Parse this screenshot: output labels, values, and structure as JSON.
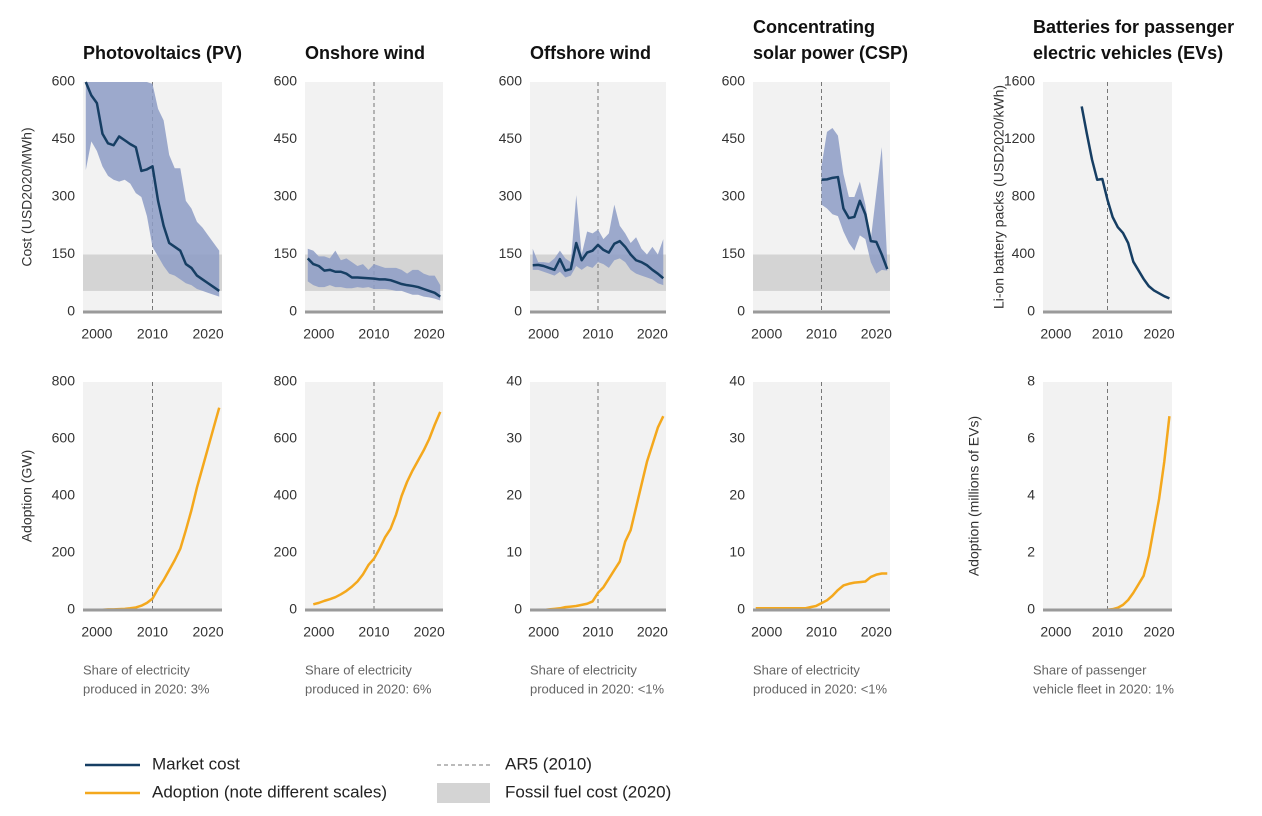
{
  "chart_data": [
    {
      "type": "line",
      "title": [
        "Photovoltaics (PV)"
      ],
      "ylabel": "Cost (USD2020/MWh)",
      "x": [
        1998,
        1999,
        2000,
        2001,
        2002,
        2003,
        2004,
        2005,
        2006,
        2007,
        2008,
        2009,
        2010,
        2011,
        2012,
        2013,
        2014,
        2015,
        2016,
        2017,
        2018,
        2019,
        2020,
        2021,
        2022
      ],
      "series": [
        {
          "name": "Market cost",
          "color": "#163e63",
          "range_color": "#8d9cc6",
          "values": [
            600,
            565,
            545,
            465,
            440,
            435,
            458,
            448,
            438,
            430,
            368,
            372,
            380,
            290,
            225,
            180,
            170,
            160,
            125,
            115,
            95,
            85,
            75,
            65,
            55
          ],
          "upper": [
            600,
            600,
            600,
            600,
            600,
            600,
            600,
            600,
            600,
            600,
            600,
            600,
            595,
            530,
            500,
            410,
            375,
            375,
            290,
            270,
            235,
            220,
            200,
            180,
            160
          ],
          "lower": [
            370,
            445,
            420,
            380,
            355,
            345,
            340,
            345,
            335,
            310,
            300,
            250,
            170,
            145,
            120,
            100,
            95,
            85,
            75,
            70,
            60,
            55,
            50,
            45,
            40
          ]
        }
      ],
      "band": {
        "range": [
          55,
          150
        ],
        "color": "#d4d4d4",
        "label": "Fossil fuel cost (2020)"
      },
      "vline": {
        "x": 2010,
        "color": "#777777",
        "label": "AR5 (2010)"
      },
      "xlim": [
        1997.5,
        2022.5
      ],
      "xticks": [
        2000,
        2010,
        2020
      ],
      "ylim": [
        0,
        600
      ],
      "yticks": [
        0,
        150,
        300,
        450,
        600
      ]
    },
    {
      "type": "line",
      "title": [
        "Onshore wind"
      ],
      "x": [
        1998,
        1999,
        2000,
        2001,
        2002,
        2003,
        2004,
        2005,
        2006,
        2007,
        2008,
        2009,
        2010,
        2011,
        2012,
        2013,
        2014,
        2015,
        2016,
        2017,
        2018,
        2019,
        2020,
        2021,
        2022
      ],
      "series": [
        {
          "color": "#163e63",
          "range_color": "#8d9cc6",
          "values": [
            140,
            125,
            120,
            108,
            110,
            105,
            105,
            100,
            90,
            90,
            89,
            88,
            87,
            85,
            85,
            83,
            78,
            73,
            70,
            68,
            65,
            60,
            55,
            50,
            40
          ],
          "upper": [
            165,
            160,
            145,
            145,
            140,
            160,
            135,
            140,
            130,
            120,
            125,
            110,
            125,
            120,
            115,
            115,
            115,
            110,
            100,
            110,
            110,
            100,
            95,
            95,
            70
          ],
          "lower": [
            80,
            70,
            65,
            65,
            70,
            65,
            65,
            62,
            62,
            65,
            63,
            65,
            60,
            60,
            60,
            58,
            55,
            55,
            50,
            45,
            45,
            40,
            38,
            35,
            30
          ]
        }
      ],
      "band": {
        "range": [
          55,
          150
        ],
        "color": "#d4d4d4"
      },
      "vline": {
        "x": 2010,
        "color": "#777777"
      },
      "xlim": [
        1997.5,
        2022.5
      ],
      "xticks": [
        2000,
        2010,
        2020
      ],
      "ylim": [
        0,
        600
      ],
      "yticks": [
        0,
        150,
        300,
        450,
        600
      ]
    },
    {
      "type": "line",
      "title": [
        "Offshore wind"
      ],
      "x": [
        1998,
        1999,
        2000,
        2001,
        2002,
        2003,
        2004,
        2005,
        2006,
        2007,
        2008,
        2009,
        2010,
        2011,
        2012,
        2013,
        2014,
        2015,
        2016,
        2017,
        2018,
        2019,
        2020,
        2021,
        2022
      ],
      "series": [
        {
          "color": "#163e63",
          "range_color": "#8d9cc6",
          "values": [
            122,
            123,
            120,
            115,
            110,
            138,
            108,
            112,
            180,
            135,
            155,
            160,
            175,
            162,
            155,
            178,
            185,
            170,
            150,
            135,
            130,
            122,
            110,
            100,
            88
          ],
          "upper": [
            165,
            130,
            130,
            128,
            140,
            160,
            140,
            130,
            305,
            150,
            210,
            205,
            215,
            190,
            205,
            280,
            225,
            205,
            180,
            195,
            165,
            150,
            170,
            150,
            190
          ],
          "lower": [
            110,
            110,
            105,
            100,
            95,
            105,
            90,
            95,
            120,
            110,
            120,
            115,
            130,
            125,
            115,
            135,
            140,
            130,
            110,
            100,
            95,
            90,
            85,
            75,
            70
          ]
        }
      ],
      "band": {
        "range": [
          55,
          150
        ],
        "color": "#d4d4d4"
      },
      "vline": {
        "x": 2010,
        "color": "#777777"
      },
      "xlim": [
        1997.5,
        2022.5
      ],
      "xticks": [
        2000,
        2010,
        2020
      ],
      "ylim": [
        0,
        600
      ],
      "yticks": [
        0,
        150,
        300,
        450,
        600
      ]
    },
    {
      "type": "line",
      "title": [
        "Concentrating",
        "solar power (CSP)"
      ],
      "x": [
        2010,
        2011,
        2012,
        2013,
        2014,
        2015,
        2016,
        2017,
        2018,
        2019,
        2020,
        2021,
        2022
      ],
      "series": [
        {
          "color": "#163e63",
          "range_color": "#8d9cc6",
          "values": [
            345,
            346,
            350,
            352,
            270,
            245,
            248,
            290,
            255,
            185,
            183,
            150,
            112
          ],
          "upper": [
            380,
            470,
            480,
            460,
            360,
            300,
            300,
            340,
            280,
            190,
            310,
            430,
            130
          ],
          "lower": [
            280,
            270,
            255,
            250,
            210,
            180,
            160,
            200,
            190,
            130,
            100,
            110,
            108
          ]
        }
      ],
      "band": {
        "range": [
          55,
          150
        ],
        "color": "#d4d4d4"
      },
      "vline": {
        "x": 2010,
        "color": "#777777"
      },
      "xlim": [
        1997.5,
        2022.5
      ],
      "xticks": [
        2000,
        2010,
        2020
      ],
      "ylim": [
        0,
        600
      ],
      "yticks": [
        0,
        150,
        300,
        450,
        600
      ]
    },
    {
      "type": "line",
      "title": [
        "Batteries for passenger",
        "electric vehicles (EVs)"
      ],
      "ylabel": "Li-on battery packs (USD2020/kWh)",
      "x": [
        2005,
        2006,
        2007,
        2008,
        2009,
        2010,
        2011,
        2012,
        2013,
        2014,
        2015,
        2016,
        2017,
        2018,
        2019,
        2020,
        2021,
        2022
      ],
      "series": [
        {
          "color": "#163e63",
          "values": [
            1430,
            1240,
            1060,
            920,
            925,
            780,
            660,
            590,
            550,
            480,
            350,
            290,
            230,
            180,
            150,
            130,
            110,
            95
          ]
        }
      ],
      "vline": {
        "x": 2010,
        "color": "#777777"
      },
      "xlim": [
        1997.5,
        2022.5
      ],
      "xticks": [
        2000,
        2010,
        2020
      ],
      "ylim": [
        0,
        1600
      ],
      "yticks": [
        0,
        400,
        800,
        1200,
        1600
      ]
    },
    {
      "type": "line",
      "ylabel": "Adoption (GW)",
      "note": [
        "Share of electricity",
        "produced in 2020: 3%"
      ],
      "x": [
        1998,
        1999,
        2000,
        2001,
        2002,
        2003,
        2004,
        2005,
        2006,
        2007,
        2008,
        2009,
        2010,
        2011,
        2012,
        2013,
        2014,
        2015,
        2016,
        2017,
        2018,
        2019,
        2020,
        2021,
        2022
      ],
      "series": [
        {
          "name": "Adoption (note different scales)",
          "color": "#f4a81d",
          "values": [
            1,
            1,
            1,
            1,
            2,
            2,
            3,
            4,
            6,
            9,
            15,
            25,
            40,
            75,
            105,
            140,
            175,
            215,
            280,
            350,
            430,
            500,
            570,
            640,
            710
          ]
        }
      ],
      "vline": {
        "x": 2010,
        "color": "#777777"
      },
      "xlim": [
        1997.5,
        2022.5
      ],
      "xticks": [
        2000,
        2010,
        2020
      ],
      "ylim": [
        0,
        800
      ],
      "yticks": [
        0,
        200,
        400,
        600,
        800
      ]
    },
    {
      "type": "line",
      "note": [
        "Share of electricity",
        "produced in 2020: 6%"
      ],
      "x": [
        1999,
        2000,
        2001,
        2002,
        2003,
        2004,
        2005,
        2006,
        2007,
        2008,
        2009,
        2010,
        2011,
        2012,
        2013,
        2014,
        2015,
        2016,
        2017,
        2018,
        2019,
        2020,
        2021,
        2022
      ],
      "series": [
        {
          "color": "#f4a81d",
          "values": [
            20,
            25,
            32,
            38,
            45,
            55,
            67,
            82,
            100,
            125,
            158,
            180,
            215,
            255,
            285,
            335,
            400,
            450,
            490,
            525,
            560,
            600,
            650,
            695
          ]
        }
      ],
      "vline": {
        "x": 2010,
        "color": "#777777"
      },
      "xlim": [
        1997.5,
        2022.5
      ],
      "xticks": [
        2000,
        2010,
        2020
      ],
      "ylim": [
        0,
        800
      ],
      "yticks": [
        0,
        200,
        400,
        600,
        800
      ]
    },
    {
      "type": "line",
      "note": [
        "Share of electricity",
        "produced in 2020: <1%"
      ],
      "x": [
        1998,
        1999,
        2000,
        2001,
        2002,
        2003,
        2004,
        2005,
        2006,
        2007,
        2008,
        2009,
        2010,
        2011,
        2012,
        2013,
        2014,
        2015,
        2016,
        2017,
        2018,
        2019,
        2020,
        2021,
        2022
      ],
      "series": [
        {
          "color": "#f4a81d",
          "values": [
            0,
            0,
            0,
            0.1,
            0.2,
            0.3,
            0.5,
            0.6,
            0.7,
            0.9,
            1.1,
            1.5,
            3,
            4,
            5.5,
            7,
            8.5,
            12,
            14,
            18,
            22,
            26,
            29,
            32,
            34
          ]
        }
      ],
      "vline": {
        "x": 2010,
        "color": "#777777"
      },
      "xlim": [
        1997.5,
        2022.5
      ],
      "xticks": [
        2000,
        2010,
        2020
      ],
      "ylim": [
        0,
        40
      ],
      "yticks": [
        0,
        10,
        20,
        30,
        40
      ]
    },
    {
      "type": "line",
      "note": [
        "Share of electricity",
        "produced in 2020: <1%"
      ],
      "x": [
        1998,
        1999,
        2000,
        2001,
        2002,
        2003,
        2004,
        2005,
        2006,
        2007,
        2008,
        2009,
        2010,
        2011,
        2012,
        2013,
        2014,
        2015,
        2016,
        2017,
        2018,
        2019,
        2020,
        2021,
        2022
      ],
      "series": [
        {
          "color": "#f4a81d",
          "values": [
            0.3,
            0.3,
            0.3,
            0.3,
            0.3,
            0.3,
            0.3,
            0.3,
            0.3,
            0.3,
            0.5,
            0.7,
            1.2,
            1.7,
            2.5,
            3.5,
            4.3,
            4.6,
            4.8,
            4.9,
            5.0,
            5.8,
            6.2,
            6.4,
            6.4
          ]
        }
      ],
      "vline": {
        "x": 2010,
        "color": "#777777"
      },
      "xlim": [
        1997.5,
        2022.5
      ],
      "xticks": [
        2000,
        2010,
        2020
      ],
      "ylim": [
        0,
        40
      ],
      "yticks": [
        0,
        10,
        20,
        30,
        40
      ]
    },
    {
      "type": "line",
      "ylabel": "Adoption (millions of EVs)",
      "note": [
        "Share of passenger",
        "vehicle fleet in 2020: 1%"
      ],
      "x": [
        2005,
        2006,
        2007,
        2008,
        2009,
        2010,
        2011,
        2012,
        2013,
        2014,
        2015,
        2016,
        2017,
        2018,
        2019,
        2020,
        2021,
        2022
      ],
      "series": [
        {
          "color": "#f4a81d",
          "values": [
            0,
            0,
            0,
            0,
            0,
            0.01,
            0.03,
            0.08,
            0.18,
            0.35,
            0.6,
            0.9,
            1.2,
            1.9,
            2.9,
            3.9,
            5.2,
            6.8
          ]
        }
      ],
      "vline": {
        "x": 2010,
        "color": "#777777"
      },
      "xlim": [
        1997.5,
        2022.5
      ],
      "xticks": [
        2000,
        2010,
        2020
      ],
      "ylim": [
        0,
        8
      ],
      "yticks": [
        0,
        2,
        4,
        6,
        8
      ]
    }
  ]
}
